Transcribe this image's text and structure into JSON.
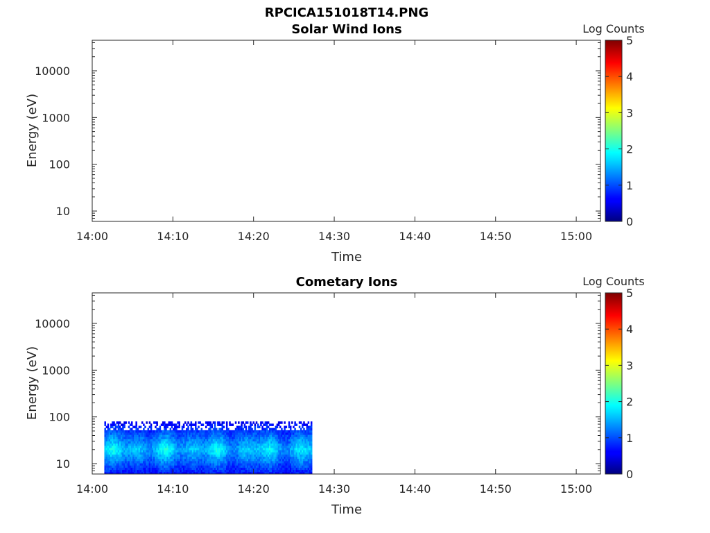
{
  "figure_title": "RPCICA151018T14.PNG",
  "colorbar": {
    "label": "Log Counts",
    "ticks": [
      "0",
      "1",
      "2",
      "3",
      "4",
      "5"
    ],
    "range": [
      0,
      5
    ],
    "colormap": "jet"
  },
  "chart_data": [
    {
      "type": "heatmap",
      "title": "Solar Wind Ions",
      "xlabel": "Time",
      "ylabel": "Energy (eV)",
      "x_ticks": [
        "14:00",
        "14:10",
        "14:20",
        "14:30",
        "14:40",
        "14:50",
        "15:00"
      ],
      "x_range": [
        "14:00",
        "15:03"
      ],
      "y_ticks": [
        "10",
        "100",
        "1000",
        "10000"
      ],
      "y_scale": "log",
      "y_range": [
        6,
        45000
      ],
      "data": []
    },
    {
      "type": "heatmap",
      "title": "Cometary Ions",
      "xlabel": "Time",
      "ylabel": "Energy (eV)",
      "x_ticks": [
        "14:00",
        "14:10",
        "14:20",
        "14:30",
        "14:40",
        "14:50",
        "15:00"
      ],
      "x_range": [
        "14:00",
        "15:03"
      ],
      "y_ticks": [
        "10",
        "100",
        "1000",
        "10000"
      ],
      "y_scale": "log",
      "y_range": [
        6,
        45000
      ],
      "data_time_range": [
        "14:01:30",
        "14:27:15"
      ],
      "data_energy_range": [
        6,
        80
      ],
      "data_log_counts_typical": [
        0.5,
        2.0
      ]
    }
  ]
}
